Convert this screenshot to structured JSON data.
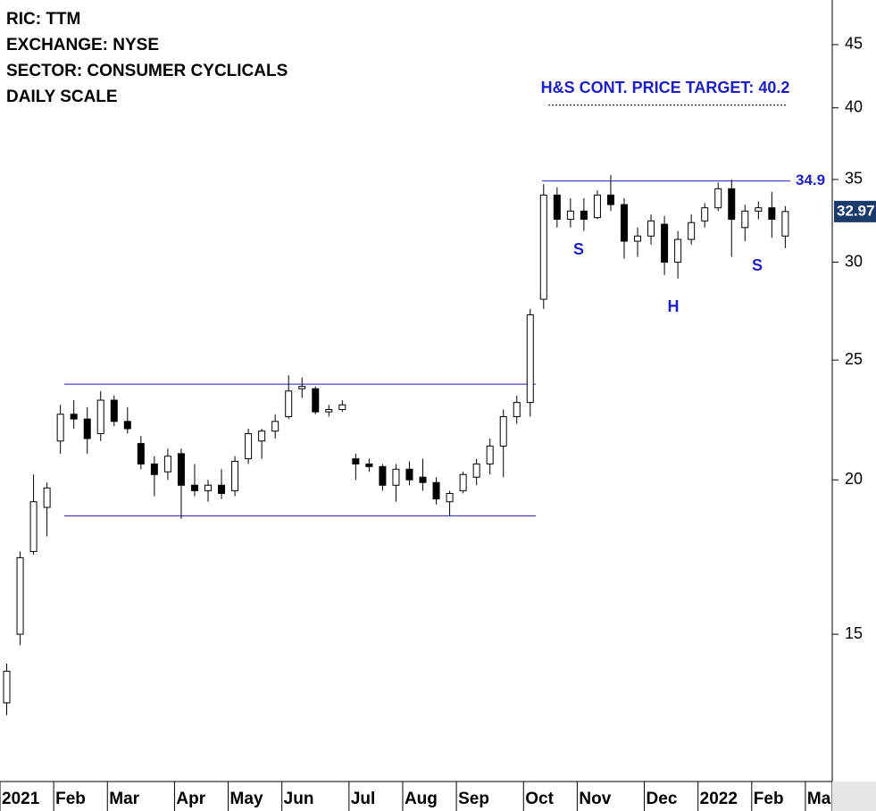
{
  "header": {
    "lines": [
      "RIC: TTM",
      "EXCHANGE: NYSE",
      "SECTOR: CONSUMER CYCLICALS",
      "DAILY SCALE"
    ]
  },
  "chart_data": {
    "type": "candlestick",
    "log_scale": true,
    "ylim": [
      11.4,
      48.9
    ],
    "yticks": [
      15,
      20,
      25,
      30,
      35,
      40,
      45
    ],
    "up_color": "#ffffff",
    "down_color": "#000000",
    "line_color": "#1f1fbf",
    "categories": [
      "2021",
      null,
      null,
      null,
      "Feb",
      null,
      null,
      null,
      "Mar",
      null,
      null,
      null,
      null,
      "Apr",
      null,
      null,
      null,
      "May",
      null,
      null,
      null,
      "Jun",
      null,
      null,
      null,
      null,
      "Jul",
      null,
      null,
      null,
      "Aug",
      null,
      null,
      null,
      "Sep",
      null,
      null,
      null,
      null,
      "Oct",
      null,
      null,
      null,
      "Nov",
      null,
      null,
      null,
      null,
      "Dec",
      null,
      null,
      null,
      "2022",
      null,
      null,
      null,
      "Feb",
      null,
      null,
      null,
      "Mar",
      null
    ],
    "open": [
      13.2,
      15,
      17.5,
      19,
      21.5,
      22.6,
      22.4,
      21.8,
      23.2,
      22.3,
      21.4,
      20.6,
      20.3,
      21,
      19.8,
      19.6,
      19.8,
      19.6,
      20.8,
      21.5,
      21.9,
      22.5,
      23.7,
      23.7,
      22.7,
      22.8,
      20.8,
      20.6,
      20.5,
      19.8,
      20.4,
      20.1,
      19.9,
      19.2,
      19.6,
      20.1,
      20.6,
      21.3,
      22.5,
      23.1,
      28,
      34,
      32.5,
      33,
      32.6,
      34,
      33.4,
      31.2,
      31.5,
      32.2,
      30,
      31.3,
      32.4,
      33.2,
      34.4,
      32,
      33,
      33.2,
      31.5,
      null,
      null,
      null
    ],
    "high": [
      14.2,
      17.5,
      20.2,
      19.9,
      23,
      23.2,
      22.9,
      23.6,
      23.4,
      22.9,
      21.7,
      20.9,
      21.2,
      21.2,
      20.6,
      20,
      20.4,
      20.9,
      22,
      22,
      22.6,
      24.3,
      24.2,
      23.8,
      23,
      23.2,
      21,
      20.8,
      20.6,
      20.6,
      20.7,
      20.8,
      20.1,
      19.6,
      20.3,
      20.8,
      21.6,
      22.8,
      23.4,
      27.5,
      34.7,
      34.5,
      33.8,
      33.8,
      34.3,
      35.3,
      33.8,
      32,
      32.8,
      32.7,
      31.8,
      32.8,
      33.5,
      34.8,
      35,
      33.4,
      33.6,
      34.2,
      33.3,
      null,
      null,
      null
    ],
    "low": [
      12.9,
      14.7,
      17.4,
      18,
      21,
      22,
      21,
      21.5,
      22.1,
      21.8,
      20.4,
      19.4,
      20,
      18.6,
      19.4,
      19.2,
      19.3,
      19.4,
      20.6,
      20.8,
      21.6,
      22.4,
      23.3,
      22.6,
      22.5,
      22.7,
      20,
      20.3,
      19.6,
      19.2,
      19.8,
      19.6,
      19.1,
      18.7,
      19.5,
      19.8,
      20.2,
      20.1,
      22.2,
      22.5,
      27.5,
      32,
      32,
      31.8,
      32.5,
      33,
      30.2,
      30.3,
      31,
      29.3,
      29.1,
      31,
      32,
      33,
      30.3,
      31.2,
      32.5,
      31.4,
      30.8,
      null,
      null,
      null
    ],
    "close": [
      14,
      17.3,
      19.2,
      19.7,
      22.6,
      22.4,
      21.6,
      23.2,
      22.3,
      22,
      20.6,
      20.2,
      20.9,
      19.8,
      19.6,
      19.8,
      19.5,
      20.7,
      21.8,
      21.9,
      22.3,
      23.6,
      23.8,
      22.7,
      22.8,
      23,
      20.6,
      20.5,
      19.8,
      20.4,
      20,
      19.9,
      19.3,
      19.5,
      20.2,
      20.6,
      21.3,
      22.5,
      23.1,
      27.2,
      34,
      32.5,
      33,
      32.5,
      34,
      33.4,
      31.2,
      31.5,
      32.4,
      30,
      31.3,
      32.3,
      33.2,
      34.4,
      32.5,
      33,
      33.2,
      32.5,
      32.97,
      null,
      null,
      null
    ],
    "lines": [
      {
        "value": 23.9
      },
      {
        "value": 18.7
      },
      {
        "value": 34.9,
        "label": "34.9"
      },
      {
        "value": 40.2,
        "style": "dashed"
      }
    ],
    "target_text": "H&S CONT. PRICE TARGET: 40.2",
    "annotations": [
      "S",
      "H",
      "S"
    ]
  }
}
